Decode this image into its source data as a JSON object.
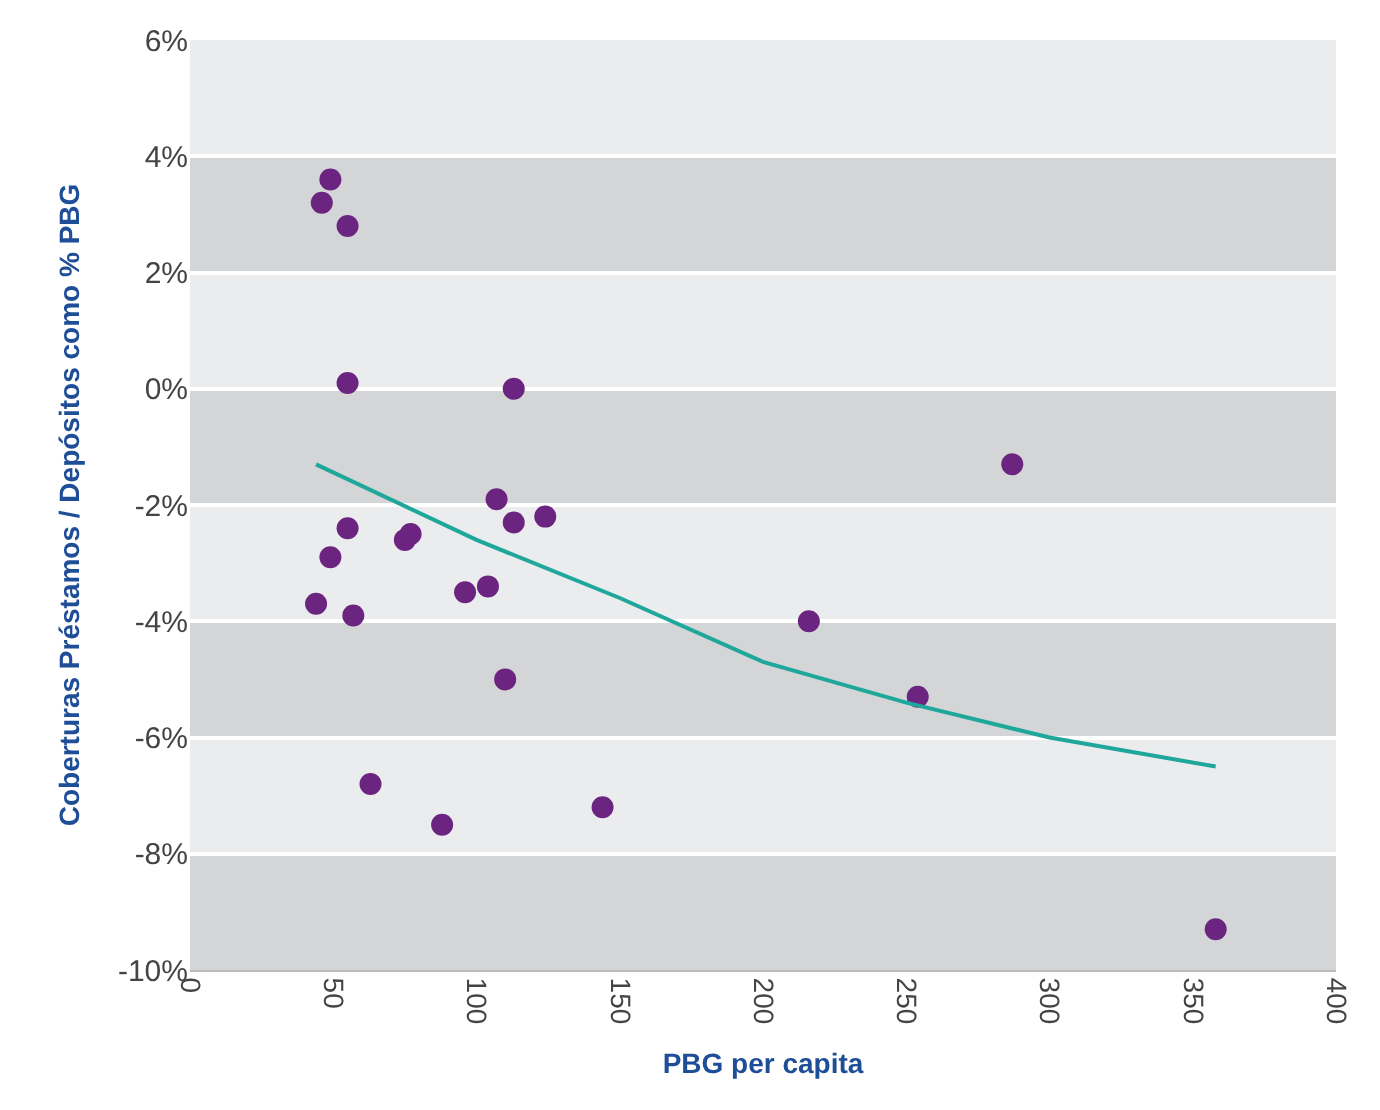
{
  "chart_data": {
    "type": "scatter",
    "xlabel": "PBG per capita",
    "ylabel": "Coberturas Préstamos / Depósitos como % PBG",
    "xlim": [
      0,
      400
    ],
    "xticks": [
      0,
      50,
      100,
      150,
      200,
      250,
      300,
      350,
      400
    ],
    "ylim": [
      -10,
      6
    ],
    "yticks": [
      {
        "value": -10,
        "label": "-10%"
      },
      {
        "value": -8,
        "label": "-8%"
      },
      {
        "value": -6,
        "label": "-6%"
      },
      {
        "value": -4,
        "label": "-4%"
      },
      {
        "value": -2,
        "label": "-2%"
      },
      {
        "value": 0,
        "label": "0%"
      },
      {
        "value": 2,
        "label": "2%"
      },
      {
        "value": 4,
        "label": "4%"
      },
      {
        "value": 6,
        "label": "6%"
      }
    ],
    "grid": "y",
    "marker": "circle",
    "bands": [
      {
        "axis": "y",
        "from": 2,
        "to": 4,
        "color": "#d4d5d7"
      },
      {
        "axis": "y",
        "from": -2,
        "to": 0,
        "color": "#d4d5d7"
      },
      {
        "axis": "y",
        "from": -6,
        "to": -4,
        "color": "#d4d5d7"
      },
      {
        "axis": "y",
        "from": -10,
        "to": -8,
        "color": "#d4d5d7"
      }
    ],
    "series": [
      {
        "color": "#6b2480",
        "x": [
          46,
          49,
          55,
          55,
          113,
          287,
          107,
          55,
          113,
          124,
          77,
          75,
          49,
          44,
          57,
          96,
          104,
          216,
          110,
          254,
          63,
          88,
          144,
          358
        ],
        "values": [
          3.2,
          3.6,
          2.8,
          0.1,
          0.0,
          -1.3,
          -1.9,
          -2.4,
          -2.3,
          -2.2,
          -2.5,
          -2.6,
          -2.9,
          -3.7,
          -3.9,
          -3.5,
          -3.4,
          -4.0,
          -5.0,
          -5.3,
          -6.8,
          -7.5,
          -7.2,
          -9.3
        ]
      },
      {
        "type": "line",
        "color": "#1fa79b",
        "marker": "none",
        "x": [
          44,
          100,
          150,
          200,
          250,
          300,
          358
        ],
        "values": [
          -1.3,
          -2.6,
          -3.6,
          -4.7,
          -5.4,
          -6.0,
          -6.5
        ]
      }
    ]
  }
}
